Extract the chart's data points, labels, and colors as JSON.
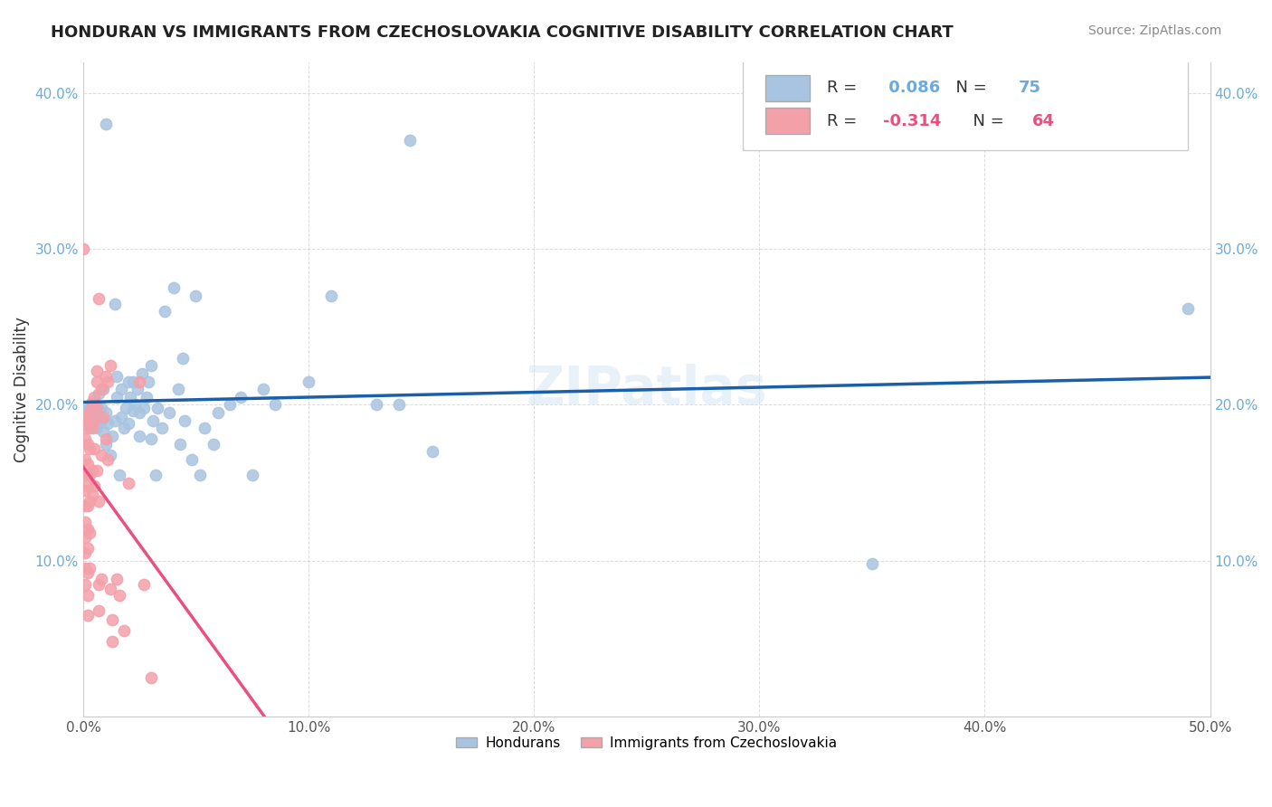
{
  "title": "HONDURAN VS IMMIGRANTS FROM CZECHOSLOVAKIA COGNITIVE DISABILITY CORRELATION CHART",
  "source": "Source: ZipAtlas.com",
  "xlabel": "",
  "ylabel": "Cognitive Disability",
  "xlim": [
    0.0,
    0.5
  ],
  "ylim": [
    0.0,
    0.42
  ],
  "xticks": [
    0.0,
    0.1,
    0.2,
    0.3,
    0.4,
    0.5
  ],
  "yticks": [
    0.1,
    0.2,
    0.3,
    0.4
  ],
  "background_color": "#ffffff",
  "blue_R": 0.086,
  "blue_N": 75,
  "pink_R": -0.314,
  "pink_N": 64,
  "blue_color": "#a8c4e0",
  "pink_color": "#f4a0a8",
  "blue_line_color": "#1a5fa8",
  "pink_line_color": "#e85080",
  "blue_scatter": [
    [
      0.001,
      0.197
    ],
    [
      0.002,
      0.193
    ],
    [
      0.003,
      0.198
    ],
    [
      0.003,
      0.185
    ],
    [
      0.004,
      0.195
    ],
    [
      0.004,
      0.202
    ],
    [
      0.005,
      0.2
    ],
    [
      0.005,
      0.191
    ],
    [
      0.006,
      0.185
    ],
    [
      0.006,
      0.199
    ],
    [
      0.007,
      0.193
    ],
    [
      0.007,
      0.207
    ],
    [
      0.008,
      0.19
    ],
    [
      0.008,
      0.198
    ],
    [
      0.009,
      0.183
    ],
    [
      0.009,
      0.21
    ],
    [
      0.01,
      0.195
    ],
    [
      0.01,
      0.175
    ],
    [
      0.011,
      0.188
    ],
    [
      0.012,
      0.168
    ],
    [
      0.013,
      0.18
    ],
    [
      0.014,
      0.265
    ],
    [
      0.014,
      0.19
    ],
    [
      0.015,
      0.218
    ],
    [
      0.015,
      0.205
    ],
    [
      0.016,
      0.155
    ],
    [
      0.017,
      0.192
    ],
    [
      0.017,
      0.21
    ],
    [
      0.018,
      0.185
    ],
    [
      0.019,
      0.198
    ],
    [
      0.02,
      0.215
    ],
    [
      0.02,
      0.188
    ],
    [
      0.021,
      0.205
    ],
    [
      0.022,
      0.196
    ],
    [
      0.022,
      0.215
    ],
    [
      0.023,
      0.2
    ],
    [
      0.024,
      0.21
    ],
    [
      0.025,
      0.195
    ],
    [
      0.025,
      0.18
    ],
    [
      0.026,
      0.22
    ],
    [
      0.027,
      0.198
    ],
    [
      0.028,
      0.205
    ],
    [
      0.029,
      0.215
    ],
    [
      0.03,
      0.225
    ],
    [
      0.03,
      0.178
    ],
    [
      0.031,
      0.19
    ],
    [
      0.032,
      0.155
    ],
    [
      0.033,
      0.198
    ],
    [
      0.035,
      0.185
    ],
    [
      0.036,
      0.26
    ],
    [
      0.038,
      0.195
    ],
    [
      0.04,
      0.275
    ],
    [
      0.042,
      0.21
    ],
    [
      0.043,
      0.175
    ],
    [
      0.044,
      0.23
    ],
    [
      0.045,
      0.19
    ],
    [
      0.048,
      0.165
    ],
    [
      0.05,
      0.27
    ],
    [
      0.052,
      0.155
    ],
    [
      0.054,
      0.185
    ],
    [
      0.058,
      0.175
    ],
    [
      0.06,
      0.195
    ],
    [
      0.065,
      0.2
    ],
    [
      0.07,
      0.205
    ],
    [
      0.075,
      0.155
    ],
    [
      0.08,
      0.21
    ],
    [
      0.085,
      0.2
    ],
    [
      0.1,
      0.215
    ],
    [
      0.11,
      0.27
    ],
    [
      0.13,
      0.2
    ],
    [
      0.14,
      0.2
    ],
    [
      0.155,
      0.17
    ],
    [
      0.35,
      0.098
    ],
    [
      0.49,
      0.262
    ],
    [
      0.145,
      0.37
    ],
    [
      0.01,
      0.38
    ]
  ],
  "pink_scatter": [
    [
      0.001,
      0.192
    ],
    [
      0.001,
      0.185
    ],
    [
      0.001,
      0.178
    ],
    [
      0.001,
      0.165
    ],
    [
      0.001,
      0.155
    ],
    [
      0.001,
      0.145
    ],
    [
      0.001,
      0.135
    ],
    [
      0.001,
      0.125
    ],
    [
      0.001,
      0.115
    ],
    [
      0.001,
      0.105
    ],
    [
      0.001,
      0.095
    ],
    [
      0.001,
      0.085
    ],
    [
      0.002,
      0.188
    ],
    [
      0.002,
      0.175
    ],
    [
      0.002,
      0.162
    ],
    [
      0.002,
      0.148
    ],
    [
      0.002,
      0.135
    ],
    [
      0.002,
      0.12
    ],
    [
      0.002,
      0.108
    ],
    [
      0.002,
      0.092
    ],
    [
      0.002,
      0.078
    ],
    [
      0.002,
      0.065
    ],
    [
      0.003,
      0.195
    ],
    [
      0.003,
      0.172
    ],
    [
      0.003,
      0.155
    ],
    [
      0.003,
      0.138
    ],
    [
      0.003,
      0.118
    ],
    [
      0.003,
      0.095
    ],
    [
      0.004,
      0.2
    ],
    [
      0.004,
      0.185
    ],
    [
      0.004,
      0.158
    ],
    [
      0.004,
      0.142
    ],
    [
      0.005,
      0.205
    ],
    [
      0.005,
      0.19
    ],
    [
      0.005,
      0.172
    ],
    [
      0.005,
      0.148
    ],
    [
      0.006,
      0.222
    ],
    [
      0.006,
      0.215
    ],
    [
      0.006,
      0.198
    ],
    [
      0.006,
      0.158
    ],
    [
      0.007,
      0.268
    ],
    [
      0.007,
      0.138
    ],
    [
      0.007,
      0.085
    ],
    [
      0.007,
      0.068
    ],
    [
      0.008,
      0.21
    ],
    [
      0.008,
      0.168
    ],
    [
      0.008,
      0.088
    ],
    [
      0.009,
      0.192
    ],
    [
      0.01,
      0.218
    ],
    [
      0.01,
      0.178
    ],
    [
      0.011,
      0.215
    ],
    [
      0.011,
      0.165
    ],
    [
      0.012,
      0.225
    ],
    [
      0.012,
      0.082
    ],
    [
      0.013,
      0.062
    ],
    [
      0.013,
      0.048
    ],
    [
      0.015,
      0.088
    ],
    [
      0.016,
      0.078
    ],
    [
      0.018,
      0.055
    ],
    [
      0.02,
      0.15
    ],
    [
      0.025,
      0.215
    ],
    [
      0.027,
      0.085
    ],
    [
      0.03,
      0.025
    ],
    [
      0.0,
      0.3
    ]
  ]
}
